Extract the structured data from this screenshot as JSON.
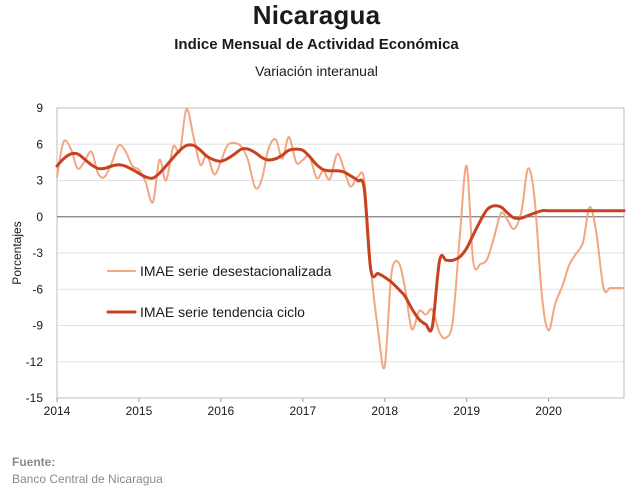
{
  "header": {
    "title": "Nicaragua",
    "subtitle": "Indice Mensual de  Actividad Económica",
    "subtitle2": "Variación interanual"
  },
  "footer": {
    "source_label": "Fuente:",
    "source_text": "Banco Central de Nicaragua"
  },
  "chart_data": {
    "type": "line",
    "title": "Nicaragua",
    "subtitle": "Indice Mensual de  Actividad Económica",
    "ylabel": "Porcentajes",
    "xlabel": "",
    "ylim": [
      -15,
      9
    ],
    "xlim": [
      2014,
      2020.92
    ],
    "yticks": [
      9,
      6,
      3,
      0,
      -3,
      -6,
      -9,
      -12,
      -15
    ],
    "xticks": [
      2014,
      2015,
      2016,
      2017,
      2018,
      2019,
      2020
    ],
    "grid": "horizontal",
    "zero_line": true,
    "legend_position": "left-center",
    "series": [
      {
        "name": "IMAE serie desestacionalizada",
        "color": "#f4a582",
        "x": [
          2014.0,
          2014.08,
          2014.17,
          2014.25,
          2014.33,
          2014.42,
          2014.5,
          2014.58,
          2014.67,
          2014.75,
          2014.83,
          2014.92,
          2015.0,
          2015.08,
          2015.17,
          2015.25,
          2015.33,
          2015.42,
          2015.5,
          2015.58,
          2015.67,
          2015.75,
          2015.83,
          2015.92,
          2016.0,
          2016.08,
          2016.17,
          2016.25,
          2016.33,
          2016.42,
          2016.5,
          2016.58,
          2016.67,
          2016.75,
          2016.83,
          2016.92,
          2017.0,
          2017.08,
          2017.17,
          2017.25,
          2017.33,
          2017.42,
          2017.5,
          2017.58,
          2017.67,
          2017.75,
          2017.83,
          2017.92,
          2018.0,
          2018.08,
          2018.17,
          2018.25,
          2018.33,
          2018.42,
          2018.5,
          2018.58,
          2018.67,
          2018.75,
          2018.83,
          2018.92,
          2019.0,
          2019.08,
          2019.17,
          2019.25,
          2019.33,
          2019.42,
          2019.5,
          2019.58,
          2019.67,
          2019.75,
          2019.83,
          2019.92,
          2020.0,
          2020.08,
          2020.17,
          2020.25,
          2020.33,
          2020.42,
          2020.5,
          2020.58,
          2020.67,
          2020.75,
          2020.83,
          2020.92
        ],
        "values": [
          3.3,
          6.2,
          5.6,
          4.0,
          4.5,
          5.4,
          3.6,
          3.3,
          4.5,
          5.9,
          5.5,
          4.2,
          3.9,
          2.9,
          1.2,
          4.7,
          3.0,
          5.8,
          5.4,
          8.9,
          6.5,
          4.3,
          5.1,
          3.5,
          4.6,
          5.9,
          6.1,
          5.8,
          4.7,
          2.4,
          3.1,
          5.6,
          6.4,
          4.8,
          6.6,
          4.5,
          4.7,
          5.0,
          3.2,
          3.8,
          3.1,
          5.2,
          4.0,
          2.5,
          3.3,
          3.0,
          -4.2,
          -9.5,
          -12.4,
          -4.8,
          -3.8,
          -6.0,
          -9.3,
          -7.8,
          -8.1,
          -7.7,
          -9.6,
          -10.0,
          -8.6,
          -1.3,
          4.2,
          -3.7,
          -3.9,
          -3.5,
          -1.8,
          0.3,
          -0.3,
          -1.0,
          0.5,
          4.0,
          1.4,
          -6.7,
          -9.4,
          -7.2,
          -5.7,
          -4.0,
          -3.1,
          -2.1,
          0.8,
          -1.2,
          -5.9,
          -5.9,
          -5.9,
          -5.9
        ]
      },
      {
        "name": "IMAE serie  tendencia ciclo",
        "color": "#c8421f",
        "x": [
          2014.0,
          2014.08,
          2014.17,
          2014.25,
          2014.33,
          2014.42,
          2014.5,
          2014.58,
          2014.67,
          2014.75,
          2014.83,
          2014.92,
          2015.0,
          2015.08,
          2015.17,
          2015.25,
          2015.33,
          2015.42,
          2015.5,
          2015.58,
          2015.67,
          2015.75,
          2015.83,
          2015.92,
          2016.0,
          2016.08,
          2016.17,
          2016.25,
          2016.33,
          2016.42,
          2016.5,
          2016.58,
          2016.67,
          2016.75,
          2016.83,
          2016.92,
          2017.0,
          2017.08,
          2017.17,
          2017.25,
          2017.33,
          2017.42,
          2017.5,
          2017.58,
          2017.67,
          2017.75,
          2017.83,
          2017.92,
          2018.0,
          2018.08,
          2018.17,
          2018.25,
          2018.33,
          2018.42,
          2018.5,
          2018.58,
          2018.67,
          2018.75,
          2018.83,
          2018.92,
          2019.0,
          2019.08,
          2019.17,
          2019.25,
          2019.33,
          2019.42,
          2019.5,
          2019.58,
          2019.67,
          2019.75,
          2019.83,
          2019.92,
          2020.0,
          2020.08,
          2020.17,
          2020.25,
          2020.33,
          2020.42,
          2020.5,
          2020.58,
          2020.67,
          2020.75,
          2020.83,
          2020.92
        ],
        "values": [
          4.2,
          4.8,
          5.2,
          5.2,
          4.8,
          4.3,
          4.0,
          4.0,
          4.2,
          4.3,
          4.2,
          3.9,
          3.6,
          3.3,
          3.2,
          3.6,
          4.2,
          4.9,
          5.5,
          5.9,
          5.9,
          5.5,
          5.0,
          4.7,
          4.6,
          4.8,
          5.2,
          5.6,
          5.6,
          5.3,
          4.9,
          4.7,
          4.8,
          5.1,
          5.5,
          5.6,
          5.5,
          5.0,
          4.3,
          3.9,
          3.8,
          3.8,
          3.7,
          3.4,
          3.0,
          2.3,
          -4.4,
          -4.7,
          -5.0,
          -5.4,
          -6.0,
          -6.6,
          -7.6,
          -8.5,
          -8.9,
          -9.1,
          -3.6,
          -3.6,
          -3.6,
          -3.3,
          -2.6,
          -1.5,
          -0.3,
          0.6,
          0.9,
          0.8,
          0.3,
          -0.1,
          -0.1,
          0.1,
          0.3,
          0.5,
          0.5,
          0.5,
          0.5,
          0.5,
          0.5,
          0.5,
          0.5,
          0.5,
          0.5,
          0.5,
          0.5,
          0.5
        ]
      }
    ]
  }
}
